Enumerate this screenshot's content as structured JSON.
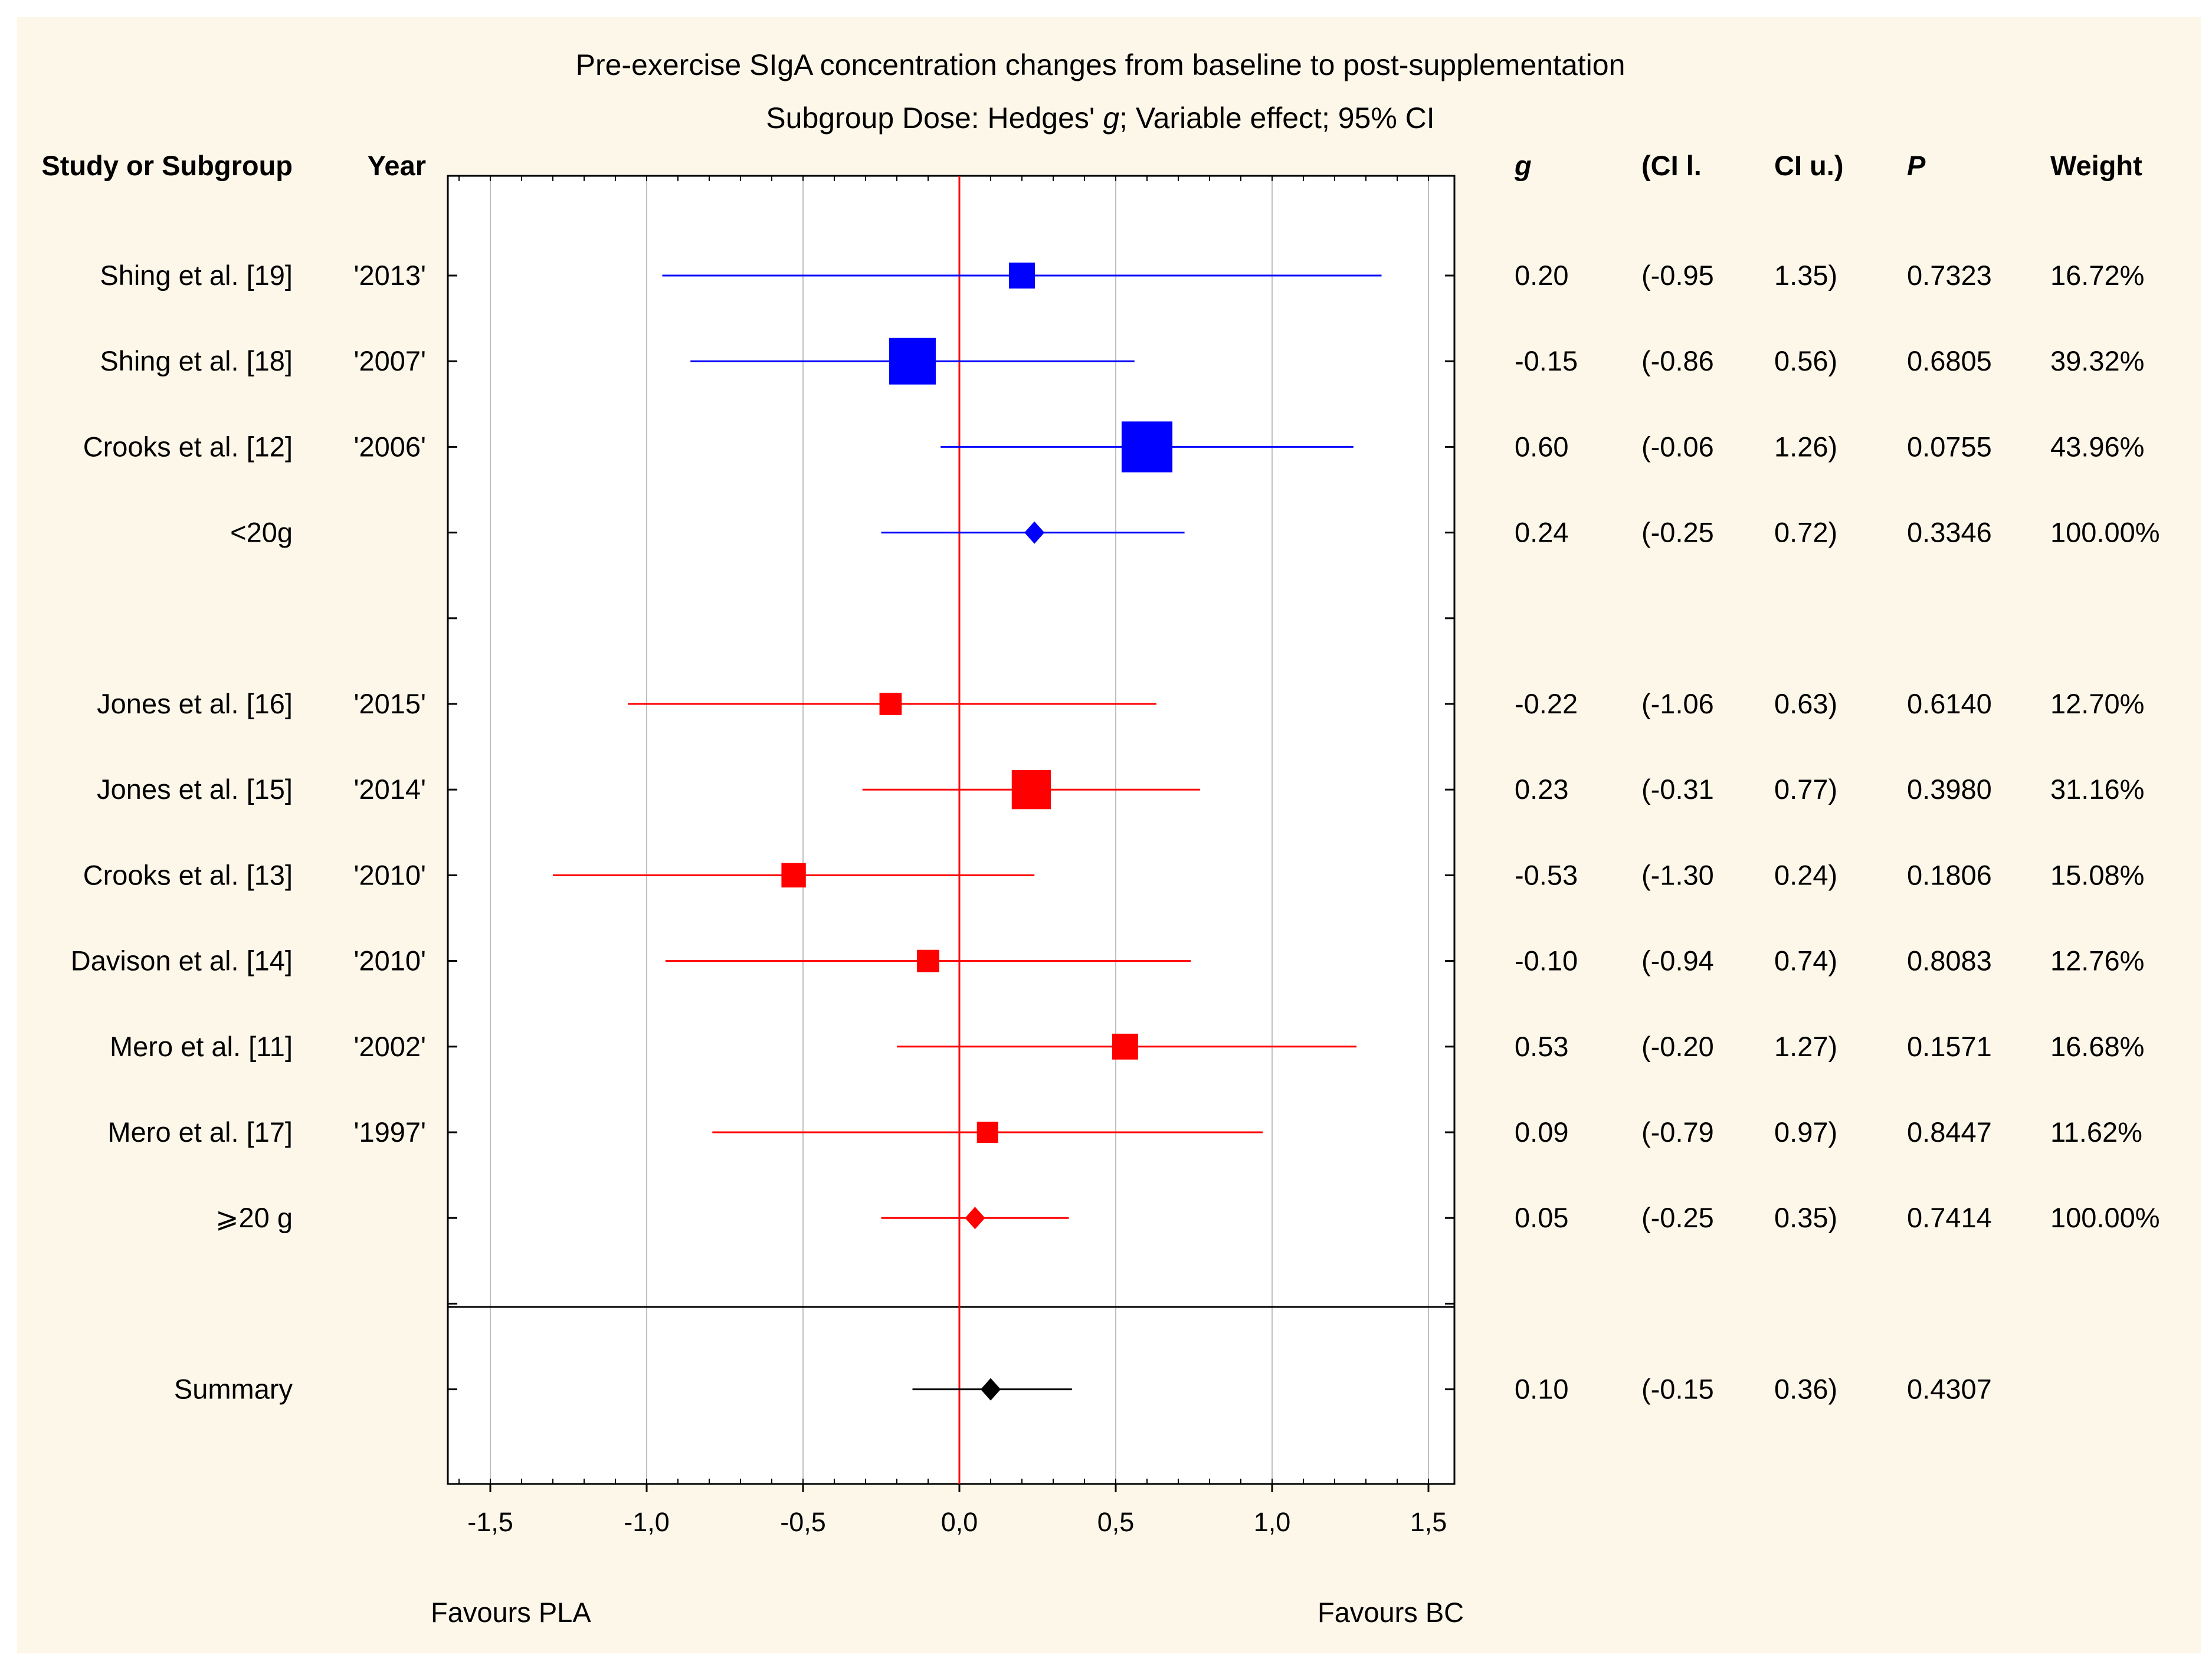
{
  "chart_data": {
    "type": "forest",
    "title": "Pre-exercise SIgA concentration changes from baseline to post-supplementation",
    "subtitle_prefix": "Subgroup Dose: Hedges' ",
    "subtitle_g": "g",
    "subtitle_suffix": "; Variable effect; 95% CI",
    "headers": {
      "study": "Study or Subgroup",
      "year": "Year",
      "g": "g",
      "ci_lower": "(CI l.",
      "ci_upper": "CI u.)",
      "p": "P",
      "weight": "Weight"
    },
    "xlim": [
      -1.6,
      1.6
    ],
    "x_ticks": [
      -1.5,
      -1.0,
      -0.5,
      0.0,
      0.5,
      1.0,
      1.5
    ],
    "x_tick_labels": [
      "-1,5",
      "-1,0",
      "-0,5",
      "0,0",
      "0,5",
      "1,0",
      "1,5"
    ],
    "favours_left": "Favours PLA",
    "favours_right": "Favours BC",
    "colors": {
      "group1": "#0000ff",
      "group2": "#ff0000",
      "summary": "#000000",
      "null_line": "#ff0000",
      "grid": "#c0c0c0",
      "panel_bg": "#fdf7e9"
    },
    "rows": [
      {
        "study": "Shing et al. [19]",
        "year": "'2013'",
        "g": 0.2,
        "lo": -0.95,
        "hi": 1.35,
        "g_text": "0.20",
        "lo_text": "(-0.95",
        "hi_text": "1.35)",
        "p_text": "0.7323",
        "weight_text": "16.72%",
        "weight": 16.72,
        "kind": "study",
        "group": 1
      },
      {
        "study": "Shing et al. [18]",
        "year": "'2007'",
        "g": -0.15,
        "lo": -0.86,
        "hi": 0.56,
        "g_text": "-0.15",
        "lo_text": "(-0.86",
        "hi_text": "0.56)",
        "p_text": "0.6805",
        "weight_text": "39.32%",
        "weight": 39.32,
        "kind": "study",
        "group": 1
      },
      {
        "study": "Crooks et al. [12]",
        "year": "'2006'",
        "g": 0.6,
        "lo": -0.06,
        "hi": 1.26,
        "g_text": "0.60",
        "lo_text": "(-0.06",
        "hi_text": "1.26)",
        "p_text": "0.0755",
        "weight_text": "43.96%",
        "weight": 43.96,
        "kind": "study",
        "group": 1
      },
      {
        "study": "<20g",
        "year": "",
        "g": 0.24,
        "lo": -0.25,
        "hi": 0.72,
        "g_text": "0.24",
        "lo_text": "(-0.25",
        "hi_text": "0.72)",
        "p_text": "0.3346",
        "weight_text": "100.00%",
        "weight": 100,
        "kind": "subgroup",
        "group": 1
      },
      {
        "kind": "blank"
      },
      {
        "study": "Jones et al. [16]",
        "year": "'2015'",
        "g": -0.22,
        "lo": -1.06,
        "hi": 0.63,
        "g_text": "-0.22",
        "lo_text": "(-1.06",
        "hi_text": "0.63)",
        "p_text": "0.6140",
        "weight_text": "12.70%",
        "weight": 12.7,
        "kind": "study",
        "group": 2
      },
      {
        "study": "Jones et al. [15]",
        "year": "'2014'",
        "g": 0.23,
        "lo": -0.31,
        "hi": 0.77,
        "g_text": "0.23",
        "lo_text": "(-0.31",
        "hi_text": "0.77)",
        "p_text": "0.3980",
        "weight_text": "31.16%",
        "weight": 31.16,
        "kind": "study",
        "group": 2
      },
      {
        "study": "Crooks et al. [13]",
        "year": "'2010'",
        "g": -0.53,
        "lo": -1.3,
        "hi": 0.24,
        "g_text": "-0.53",
        "lo_text": "(-1.30",
        "hi_text": "0.24)",
        "p_text": "0.1806",
        "weight_text": "15.08%",
        "weight": 15.08,
        "kind": "study",
        "group": 2
      },
      {
        "study": "Davison et al. [14]",
        "year": "'2010'",
        "g": -0.1,
        "lo": -0.94,
        "hi": 0.74,
        "g_text": "-0.10",
        "lo_text": "(-0.94",
        "hi_text": "0.74)",
        "p_text": "0.8083",
        "weight_text": "12.76%",
        "weight": 12.76,
        "kind": "study",
        "group": 2
      },
      {
        "study": "Mero et al. [11]",
        "year": "'2002'",
        "g": 0.53,
        "lo": -0.2,
        "hi": 1.27,
        "g_text": "0.53",
        "lo_text": "(-0.20",
        "hi_text": "1.27)",
        "p_text": "0.1571",
        "weight_text": "16.68%",
        "weight": 16.68,
        "kind": "study",
        "group": 2
      },
      {
        "study": "Mero et al. [17]",
        "year": "'1997'",
        "g": 0.09,
        "lo": -0.79,
        "hi": 0.97,
        "g_text": "0.09",
        "lo_text": "(-0.79",
        "hi_text": "0.97)",
        "p_text": "0.8447",
        "weight_text": "11.62%",
        "weight": 11.62,
        "kind": "study",
        "group": 2
      },
      {
        "study": "⩾20 g",
        "year": "",
        "g": 0.05,
        "lo": -0.25,
        "hi": 0.35,
        "g_text": "0.05",
        "lo_text": "(-0.25",
        "hi_text": "0.35)",
        "p_text": "0.7414",
        "weight_text": "100.00%",
        "weight": 100,
        "kind": "subgroup",
        "group": 2
      },
      {
        "kind": "blank"
      },
      {
        "study": "Summary",
        "year": "",
        "g": 0.1,
        "lo": -0.15,
        "hi": 0.36,
        "g_text": "0.10",
        "lo_text": "(-0.15",
        "hi_text": "0.36)",
        "p_text": "0.4307",
        "weight_text": "",
        "weight": 0,
        "kind": "summary",
        "group": 0
      }
    ]
  }
}
